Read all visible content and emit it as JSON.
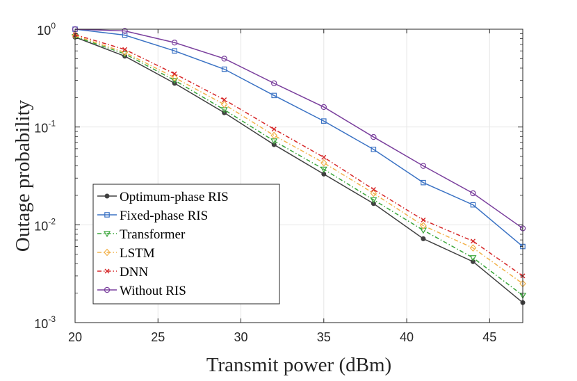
{
  "chart_data": {
    "type": "line",
    "xlabel": "Transmit power (dBm)",
    "ylabel": "Outage probability",
    "yscale": "log",
    "xlim": [
      20,
      47
    ],
    "ylim": [
      0.001,
      1
    ],
    "grid": true,
    "x_ticks": [
      20,
      25,
      30,
      35,
      40,
      45
    ],
    "y_ticks": [
      {
        "value": 0.001,
        "base": "10",
        "exp": "-3"
      },
      {
        "value": 0.01,
        "base": "10",
        "exp": "-2"
      },
      {
        "value": 0.1,
        "base": "10",
        "exp": "-1"
      },
      {
        "value": 1,
        "base": "10",
        "exp": "0"
      }
    ],
    "legend_position": "bottom-left",
    "x": [
      20,
      23,
      26,
      29,
      32,
      35,
      38,
      41,
      44,
      47
    ],
    "series": [
      {
        "name": "Optimum-phase RIS",
        "color": "#404040",
        "marker": "dot",
        "dash": "solid",
        "values": [
          0.83,
          0.53,
          0.28,
          0.14,
          0.066,
          0.033,
          0.0165,
          0.0072,
          0.0042,
          0.0016
        ]
      },
      {
        "name": "Fixed-phase RIS",
        "color": "#3a72c4",
        "marker": "square",
        "dash": "solid",
        "values": [
          1.0,
          0.87,
          0.6,
          0.39,
          0.21,
          0.115,
          0.059,
          0.027,
          0.016,
          0.006
        ]
      },
      {
        "name": "Transformer",
        "color": "#3aa63a",
        "marker": "triangle-down",
        "dash": "dashdot",
        "values": [
          0.84,
          0.56,
          0.3,
          0.15,
          0.072,
          0.037,
          0.018,
          0.0088,
          0.0046,
          0.0019
        ]
      },
      {
        "name": "LSTM",
        "color": "#f2b24b",
        "marker": "diamond",
        "dash": "dashdot",
        "values": [
          0.86,
          0.58,
          0.32,
          0.17,
          0.082,
          0.043,
          0.021,
          0.0098,
          0.0058,
          0.0025
        ]
      },
      {
        "name": "DNN",
        "color": "#d62728",
        "marker": "x",
        "dash": "dashdot",
        "values": [
          0.88,
          0.62,
          0.35,
          0.19,
          0.095,
          0.049,
          0.023,
          0.0112,
          0.0068,
          0.003
        ]
      },
      {
        "name": "Without RIS",
        "color": "#7a3f9d",
        "marker": "circle",
        "dash": "solid",
        "values": [
          1.0,
          0.96,
          0.73,
          0.5,
          0.28,
          0.16,
          0.079,
          0.04,
          0.021,
          0.0092
        ]
      }
    ]
  }
}
